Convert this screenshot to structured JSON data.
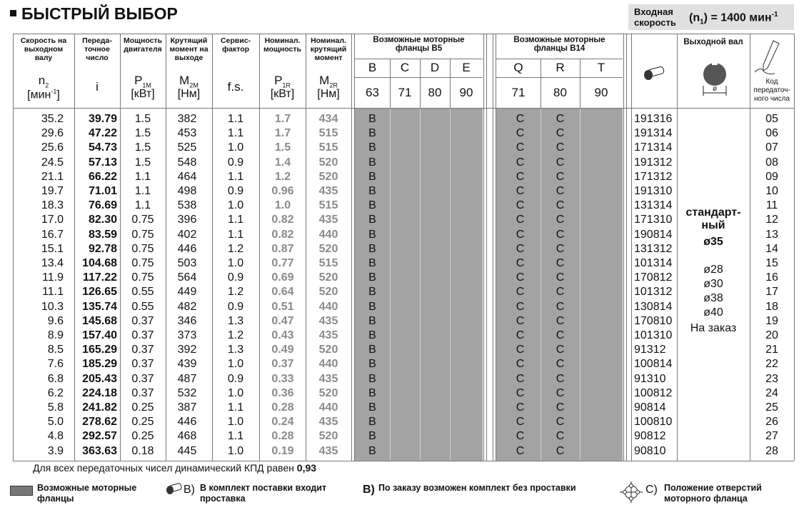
{
  "header": {
    "title": "БЫСТРЫЙ ВЫБОР",
    "input_speed": {
      "label": "Входная скорость",
      "symbol": "(n",
      "sub": "1",
      "value": ") = 1400 мин",
      "sup": "-1"
    }
  },
  "table": {
    "columns": [
      {
        "label": [
          "Скорость на",
          "выходном",
          "валу"
        ],
        "symbol": "n",
        "sub": "2",
        "unit": "[мин",
        "unit_sup": "-1",
        "unit_end": "]"
      },
      {
        "label": [
          "Переда-",
          "точное",
          "число"
        ],
        "symbol": "i"
      },
      {
        "label": [
          "Мощность",
          "двигателя"
        ],
        "symbol": "P",
        "sub": "1M",
        "unit": "[кВт]"
      },
      {
        "label": [
          "Крутящий",
          "момент на",
          "выходе"
        ],
        "symbol": "M",
        "sub": "2M",
        "unit": "[Нм]"
      },
      {
        "label": [
          "Сервис-",
          "фактор"
        ],
        "symbol": "f.s."
      },
      {
        "label": [
          "Номинал.",
          "мощность"
        ],
        "symbol": "P",
        "sub": "1R",
        "unit": "[кВт]"
      },
      {
        "label": [
          "Номинал.",
          "крутящий",
          "момент"
        ],
        "symbol": "M",
        "sub": "2R",
        "unit": "[Нм]"
      }
    ],
    "flanges_b5": {
      "title": [
        "Возможные моторные",
        "фланцы B5"
      ],
      "letters": [
        "B",
        "C",
        "D",
        "E"
      ],
      "sizes": [
        "63",
        "71",
        "80",
        "90"
      ]
    },
    "flanges_b14": {
      "title": [
        "Возможные моторные",
        "фланцы B14"
      ],
      "letters": [
        "Q",
        "R",
        "T"
      ],
      "sizes": [
        "71",
        "80",
        "90"
      ]
    },
    "output_shaft": {
      "title": "Выходной вал",
      "standard": [
        "стандарт-",
        "ный"
      ],
      "standard_size": "ø35",
      "options": [
        "ø28",
        "ø30",
        "ø38",
        "ø40"
      ],
      "order": "На заказ"
    },
    "code_title": [
      "Код",
      "передаточ-",
      "ного числа"
    ],
    "rows": [
      [
        "35.2",
        "39.79",
        "1.5",
        "382",
        "1.1",
        "1.7",
        "434",
        "B",
        "C",
        "C",
        "191316",
        "05"
      ],
      [
        "29.6",
        "47.22",
        "1.5",
        "453",
        "1.1",
        "1.7",
        "515",
        "B",
        "C",
        "C",
        "191314",
        "06"
      ],
      [
        "25.6",
        "54.73",
        "1.5",
        "525",
        "1.0",
        "1.5",
        "515",
        "B",
        "C",
        "C",
        "171314",
        "07"
      ],
      [
        "24.5",
        "57.13",
        "1.5",
        "548",
        "0.9",
        "1.4",
        "520",
        "B",
        "C",
        "C",
        "191312",
        "08"
      ],
      [
        "21.1",
        "66.22",
        "1.1",
        "464",
        "1.1",
        "1.2",
        "520",
        "B",
        "C",
        "C",
        "171312",
        "09"
      ],
      [
        "19.7",
        "71.01",
        "1.1",
        "498",
        "0.9",
        "0.96",
        "435",
        "B",
        "C",
        "C",
        "191310",
        "10"
      ],
      [
        "18.3",
        "76.69",
        "1.1",
        "538",
        "1.0",
        "1.0",
        "515",
        "B",
        "C",
        "C",
        "131314",
        "11"
      ],
      [
        "17.0",
        "82.30",
        "0.75",
        "396",
        "1.1",
        "0.82",
        "435",
        "B",
        "C",
        "C",
        "171310",
        "12"
      ],
      [
        "16.7",
        "83.59",
        "0.75",
        "402",
        "1.1",
        "0.82",
        "440",
        "B",
        "C",
        "C",
        "190814",
        "13"
      ],
      [
        "15.1",
        "92.78",
        "0.75",
        "446",
        "1.2",
        "0.87",
        "520",
        "B",
        "C",
        "C",
        "131312",
        "14"
      ],
      [
        "13.4",
        "104.68",
        "0.75",
        "503",
        "1.0",
        "0.77",
        "515",
        "B",
        "C",
        "C",
        "101314",
        "15"
      ],
      [
        "11.9",
        "117.22",
        "0.75",
        "564",
        "0.9",
        "0.69",
        "520",
        "B",
        "C",
        "C",
        "170812",
        "16"
      ],
      [
        "11.1",
        "126.65",
        "0.55",
        "449",
        "1.2",
        "0.64",
        "520",
        "B",
        "C",
        "C",
        "101312",
        "17"
      ],
      [
        "10.3",
        "135.74",
        "0.55",
        "482",
        "0.9",
        "0.51",
        "440",
        "B",
        "C",
        "C",
        "130814",
        "18"
      ],
      [
        "9.6",
        "145.68",
        "0.37",
        "346",
        "1.3",
        "0.47",
        "435",
        "B",
        "C",
        "C",
        "170810",
        "19"
      ],
      [
        "8.9",
        "157.40",
        "0.37",
        "373",
        "1.2",
        "0.43",
        "435",
        "B",
        "C",
        "C",
        "101310",
        "20"
      ],
      [
        "8.5",
        "165.29",
        "0.37",
        "392",
        "1.3",
        "0.49",
        "520",
        "B",
        "C",
        "C",
        "91312",
        "21"
      ],
      [
        "7.6",
        "185.29",
        "0.37",
        "439",
        "1.0",
        "0.37",
        "440",
        "B",
        "C",
        "C",
        "100814",
        "22"
      ],
      [
        "6.8",
        "205.43",
        "0.37",
        "487",
        "0.9",
        "0.33",
        "435",
        "B",
        "C",
        "C",
        "91310",
        "23"
      ],
      [
        "6.2",
        "224.18",
        "0.37",
        "532",
        "1.0",
        "0.36",
        "520",
        "B",
        "C",
        "C",
        "100812",
        "24"
      ],
      [
        "5.8",
        "241.82",
        "0.25",
        "387",
        "1.1",
        "0.28",
        "440",
        "B",
        "C",
        "C",
        "90814",
        "25"
      ],
      [
        "5.0",
        "278.62",
        "0.25",
        "446",
        "1.0",
        "0.24",
        "435",
        "B",
        "C",
        "C",
        "100810",
        "26"
      ],
      [
        "4.8",
        "292.57",
        "0.25",
        "468",
        "1.1",
        "0.28",
        "520",
        "B",
        "C",
        "C",
        "90812",
        "27"
      ],
      [
        "3.9",
        "363.63",
        "0.18",
        "445",
        "1.0",
        "0.19",
        "435",
        "B",
        "C",
        "C",
        "90810",
        "28"
      ]
    ]
  },
  "footnote": {
    "text": "Для всех передаточных чисел динамический КПД равен",
    "value": "0,93"
  },
  "legend": [
    {
      "text": [
        "Возможные моторные",
        "фланцы"
      ]
    },
    {
      "symbol": "B)",
      "text": [
        "В комплект поставки входит",
        "проставка"
      ]
    },
    {
      "symbol": "B)",
      "text": [
        "По заказу возможен комплект без проставки"
      ]
    },
    {
      "symbol": "C)",
      "text": [
        "Положение отверстий",
        "моторного фланца"
      ]
    }
  ]
}
